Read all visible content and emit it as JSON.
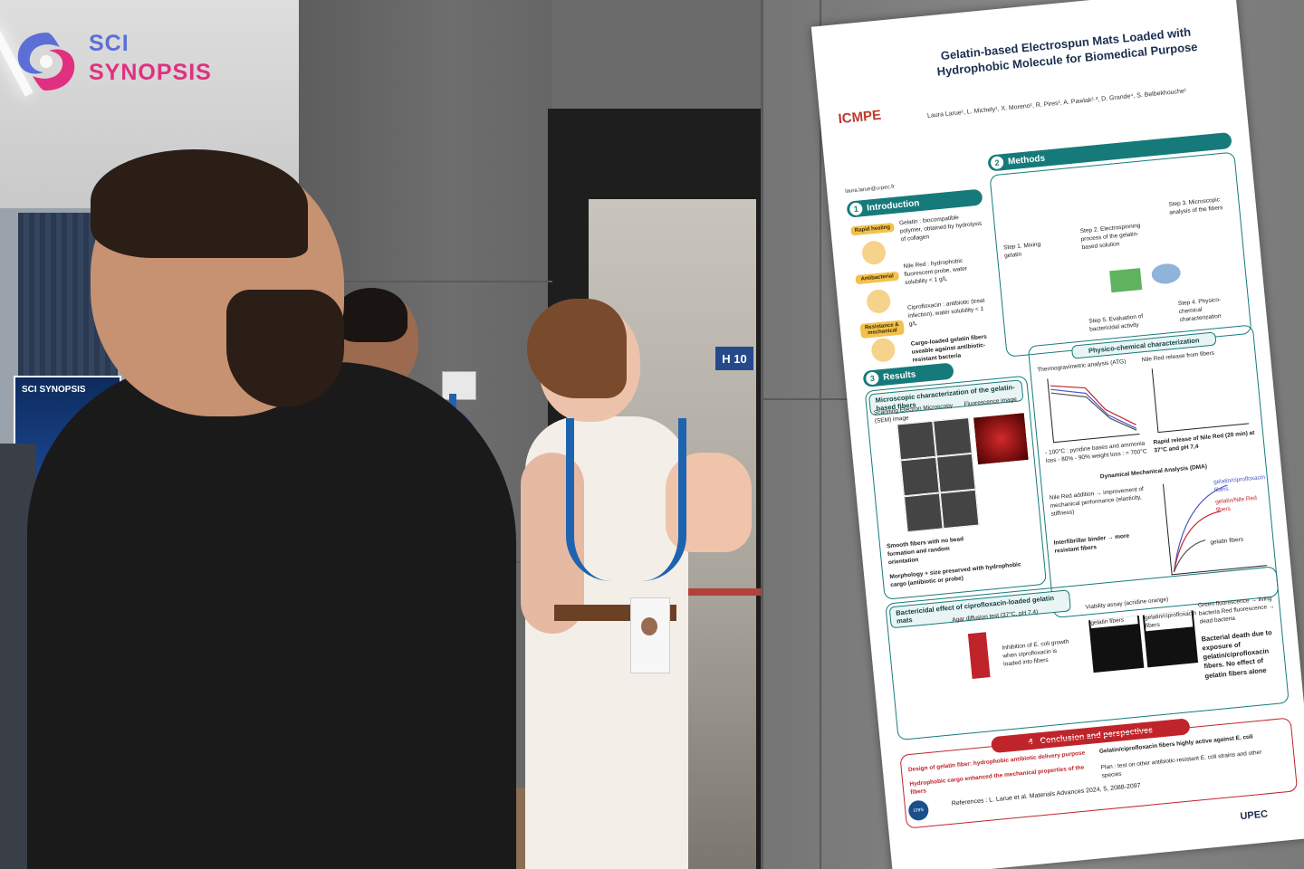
{
  "watermark": {
    "line1": "SCI",
    "line2": "SYNOPSIS",
    "colors": {
      "blue": "#5b6fd6",
      "pink": "#e0307f"
    }
  },
  "room": {
    "room_sign": "H 10",
    "side_banner": "SCI SYNOPSIS"
  },
  "poster": {
    "logo": "ICMPE",
    "title": "Gelatin-based Electrospun Mats Loaded with Hydrophobic Molecule for Biomedical Purpose",
    "authors": "Laura Larue¹, L. Michely¹, X. Moreno¹, R. Pires¹, A. Pawlak²·³, D. Grande⁴, S. Belbekhouche¹",
    "email": "laura.larue@u-pec.fr",
    "sections": {
      "introduction": {
        "num": "1",
        "title": "Introduction"
      },
      "methods": {
        "num": "2",
        "title": "Methods"
      },
      "results": {
        "num": "3",
        "title": "Results"
      },
      "conclusion": {
        "num": "4",
        "title": "Conclusion and perspectives"
      }
    },
    "intro_tags": [
      "Rapid healing",
      "Antibacterial",
      "Resistance & mechanical"
    ],
    "intro_items": [
      "Gelatin : biocompatible polymer, obtained by hydrolysis of collagen",
      "Nile Red : hydrophobic fluorescent probe, water solubility < 1 g/L",
      "Ciprofloxacin : antibiotic (treat infection), water solubility < 1 g/L"
    ],
    "intro_goal": "Cargo-loaded gelatin fibers useable against antibiotic-resistant bacteria",
    "methods_steps": [
      "Step 1. Mixing gelatin",
      "Step 2. Electrospinning process of the gelatin-based solution",
      "Step 3. Microscopic analysis of the fibers",
      "Step 4. Physico-chemical characterization",
      "Step 5. Evaluation of bactericidal activity"
    ],
    "microscopic_head": "Microscopic characterization of the gelatin-based fibers",
    "sem_label": "Scanning Electron Microscopy (SEM) image",
    "fluor_label": "Fluorescence image",
    "smooth_fibers": "Smooth fibers with no bead formation and random orientation",
    "morphology": "Morphology + size preserved with hydrophobic cargo (antibiotic or probe)",
    "physico_head": "Physico-chemical characterization",
    "atg_label": "Thermogravimetric analysis (ATG)",
    "nile_release_label": "Nile Red release from fibers",
    "atg_note": "- 100°C : pyridine bases and ammonia loss - 80% - 90% weight loss : ≈ 700°C",
    "nile_release_note": "Rapid release of Nile Red (20 min) at 37°C and pH 7,4",
    "dma_label": "Dynamical Mechanical Analysis (DMA)",
    "dma_note": "Nile Red addition → improvement of mechanical performance (elasticity, stiffness)",
    "dma_binder": "Interfibrillar binder → more resistant fibers",
    "dma_series": [
      "gelatin/ciprofloxacin fibers",
      "gelatin/Nile Red fibers",
      "gelatin fibers"
    ],
    "bactericidal_head": "Bactericidal effect of ciprofloxacin-loaded gelatin mats",
    "agar_label": "Agar diffusion test (37°C, pH 7,4)",
    "viability_label": "Viability assay (acridine orange)",
    "inhibition_note": "Inhibition of E. coli growth when ciprofloxacin is loaded into fibers",
    "viability_tiles": [
      "gelatin fibers",
      "gelatin/ciprofloxacin fibers"
    ],
    "fluor_legend": "Green fluorescence → living bacteria   Red fluorescence → dead bacteria",
    "bacterial_death": "Bacterial death due to exposure of gelatin/ciprofloxacin fibers. No effect of gelatin fibers alone",
    "conclusion_items": [
      "Design of gelatin fiber: hydrophobic antibiotic delivery purpose",
      "Hydrophobic cargo enhanced the mechanical properties of the fibers",
      "Gelatin/ciprofloxacin fibers highly active against E. coli",
      "Plan : test on other antibiotic-resistant E. coli strains and other species"
    ],
    "reference": "References : L. Larue et al. Materials Advances 2024, 5, 2088-2097",
    "footer_logo": "UPEC",
    "cnrs": "cnrs"
  }
}
